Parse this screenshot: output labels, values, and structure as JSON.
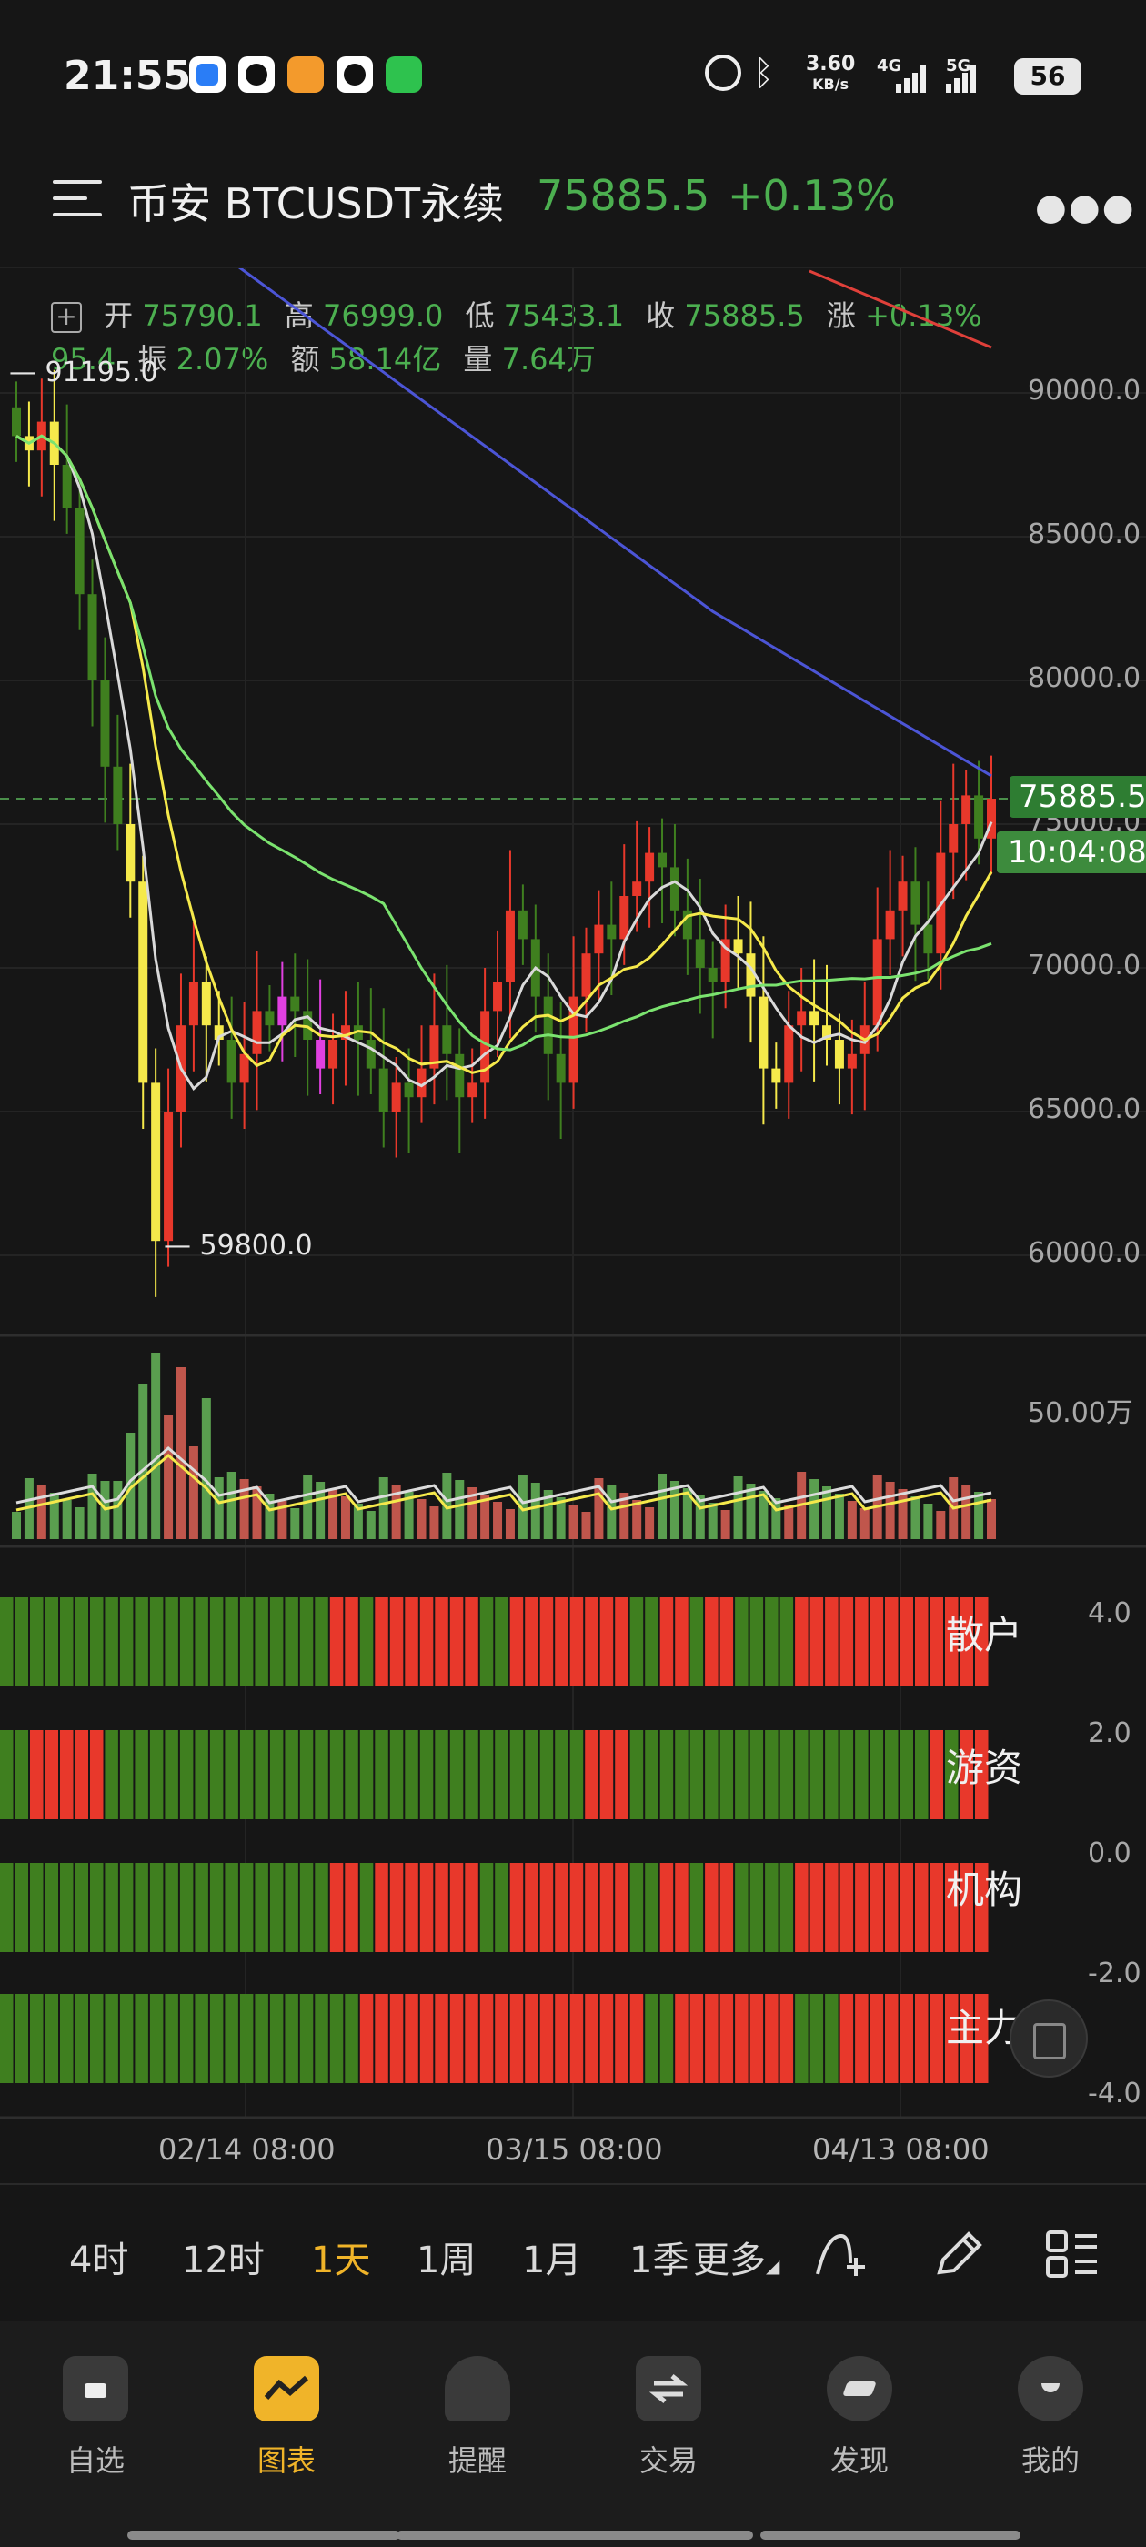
{
  "status_bar": {
    "time": "21:55",
    "network_speed": "3.60",
    "network_unit": "KB/s",
    "signal_1": "4G",
    "signal_2": "5G",
    "battery": "56"
  },
  "header": {
    "title": "币安 BTCUSDT永续",
    "price": "75885.5",
    "change": "+0.13%"
  },
  "ohlc": {
    "open_label": "开",
    "open": "75790.1",
    "high_label": "高",
    "high": "76999.0",
    "low_label": "低",
    "low": "75433.1",
    "close_label": "收",
    "close": "75885.5",
    "rise_label": "涨",
    "rise": "+0.13%",
    "extra": "95.4",
    "amplitude_label": "振",
    "amplitude": "2.07%",
    "amount_label": "额",
    "amount": "58.14亿",
    "volume_label": "量",
    "volume": "7.64万"
  },
  "price_axis": [
    "90000.0",
    "85000.0",
    "80000.0",
    "75000.0",
    "70000.0",
    "65000.0",
    "60000.0"
  ],
  "markers": {
    "high_marker": "91195.0",
    "low_marker": "— 59800.0"
  },
  "last_price_tag": "75885.5",
  "countdown_tag": "10:04:08",
  "volume_axis": "50.00万",
  "indicator_axis": [
    "4.0",
    "2.0",
    "0.0",
    "-2.0",
    "-4.0"
  ],
  "indicator_labels": [
    "散户",
    "游资",
    "机构",
    "主力"
  ],
  "date_axis": [
    "02/14 08:00",
    "03/15 08:00",
    "04/13 08:00"
  ],
  "timeframes": [
    "4时",
    "12时",
    "1天",
    "1周",
    "1月",
    "1季",
    "更多"
  ],
  "active_timeframe": "1天",
  "nav": [
    {
      "label": "自选",
      "icon": "watchlist-icon"
    },
    {
      "label": "图表",
      "icon": "chart-icon"
    },
    {
      "label": "提醒",
      "icon": "bell-icon"
    },
    {
      "label": "交易",
      "icon": "trade-icon"
    },
    {
      "label": "发现",
      "icon": "discover-icon"
    },
    {
      "label": "我的",
      "icon": "profile-icon"
    }
  ],
  "colors": {
    "up": "#e8382b",
    "down": "#3f7f1f",
    "price_green": "#4caf50",
    "accent": "#f0b429"
  },
  "chart_data": {
    "type": "candlestick",
    "price_range": [
      58000,
      94000
    ],
    "closes": [
      88500,
      88000,
      89000,
      87500,
      86000,
      83000,
      80000,
      77000,
      75000,
      73000,
      66000,
      60500,
      65000,
      68000,
      69500,
      68000,
      67500,
      66000,
      67000,
      68500,
      68000,
      69000,
      68500,
      67500,
      66500,
      67500,
      68000,
      67500,
      66500,
      65000,
      66000,
      65500,
      66500,
      68000,
      67000,
      65500,
      66000,
      68500,
      69500,
      72000,
      71000,
      69000,
      67000,
      66000,
      69000,
      70500,
      71500,
      71000,
      72500,
      73000,
      74000,
      73500,
      72000,
      71000,
      70000,
      69500,
      71000,
      70500,
      69000,
      66500,
      66000,
      68000,
      68500,
      68000,
      67500,
      66500,
      67000,
      68000,
      71000,
      72000,
      73000,
      71500,
      70500,
      74000,
      75000,
      76000,
      74500,
      75885.5
    ]
  }
}
